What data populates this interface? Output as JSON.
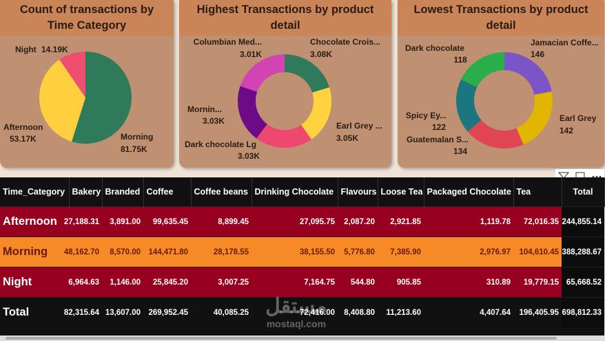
{
  "chart_data": [
    {
      "type": "pie",
      "title": "Count of transactions by Time Category",
      "categories": [
        "Morning",
        "Afternoon",
        "Night"
      ],
      "values": [
        81750,
        53170,
        14190
      ],
      "value_labels": [
        "81.75K",
        "53.17K",
        "14.19K"
      ],
      "colors": [
        "#2f7a5a",
        "#ffcf3f",
        "#ef4f6e"
      ]
    },
    {
      "type": "donut",
      "title": "Highest Transactions by product detail",
      "categories": [
        "Chocolate Crois...",
        "Earl Grey ...",
        "Dark chocolate Lg",
        "Mornin...",
        "Columbian Med..."
      ],
      "values": [
        3080,
        3050,
        3030,
        3030,
        3010
      ],
      "value_labels": [
        "3.08K",
        "3.05K",
        "3.03K",
        "3.03K",
        "3.01K"
      ],
      "colors": [
        "#2f7a5a",
        "#ffd23f",
        "#ef4870",
        "#6e0a86",
        "#d343b3"
      ]
    },
    {
      "type": "donut",
      "title": "Lowest Transactions by product detail",
      "categories": [
        "Jamacian Coffe...",
        "Earl Grey",
        "Guatemalan S...",
        "Spicy Ey...",
        "Dark chocolate"
      ],
      "values": [
        146,
        142,
        134,
        122,
        118
      ],
      "colors": [
        "#7b55c8",
        "#e2b500",
        "#df4552",
        "#1c7680",
        "#2aae4a"
      ]
    }
  ],
  "table": {
    "columns": [
      "Time_Category",
      "Bakery",
      "Branded",
      "Coffee",
      "Coffee beans",
      "Drinking Chocolate",
      "Flavours",
      "Loose Tea",
      "Packaged Chocolate",
      "Tea",
      "Total"
    ],
    "rows": [
      [
        "Afternoon",
        "27,188.31",
        "3,891.00",
        "99,635.45",
        "8,899.45",
        "27,095.75",
        "2,087.20",
        "2,921.85",
        "1,119.78",
        "72,016.35",
        "244,855.14"
      ],
      [
        "Morning",
        "48,162.70",
        "8,570.00",
        "144,471.80",
        "28,178.55",
        "38,155.50",
        "5,776.80",
        "7,385.90",
        "2,976.97",
        "104,610.45",
        "388,288.67"
      ],
      [
        "Night",
        "6,964.63",
        "1,146.00",
        "25,845.20",
        "3,007.25",
        "7,164.75",
        "544.80",
        "905.85",
        "310.89",
        "19,779.15",
        "65,668.52"
      ],
      [
        "Total",
        "82,315.64",
        "13,607.00",
        "269,952.45",
        "40,085.25",
        "72,416.00",
        "8,408.80",
        "11,213.60",
        "4,407.64",
        "196,405.95",
        "698,812.33"
      ]
    ]
  },
  "watermark": {
    "brand": "مستقل",
    "site": "mostaql.com"
  }
}
